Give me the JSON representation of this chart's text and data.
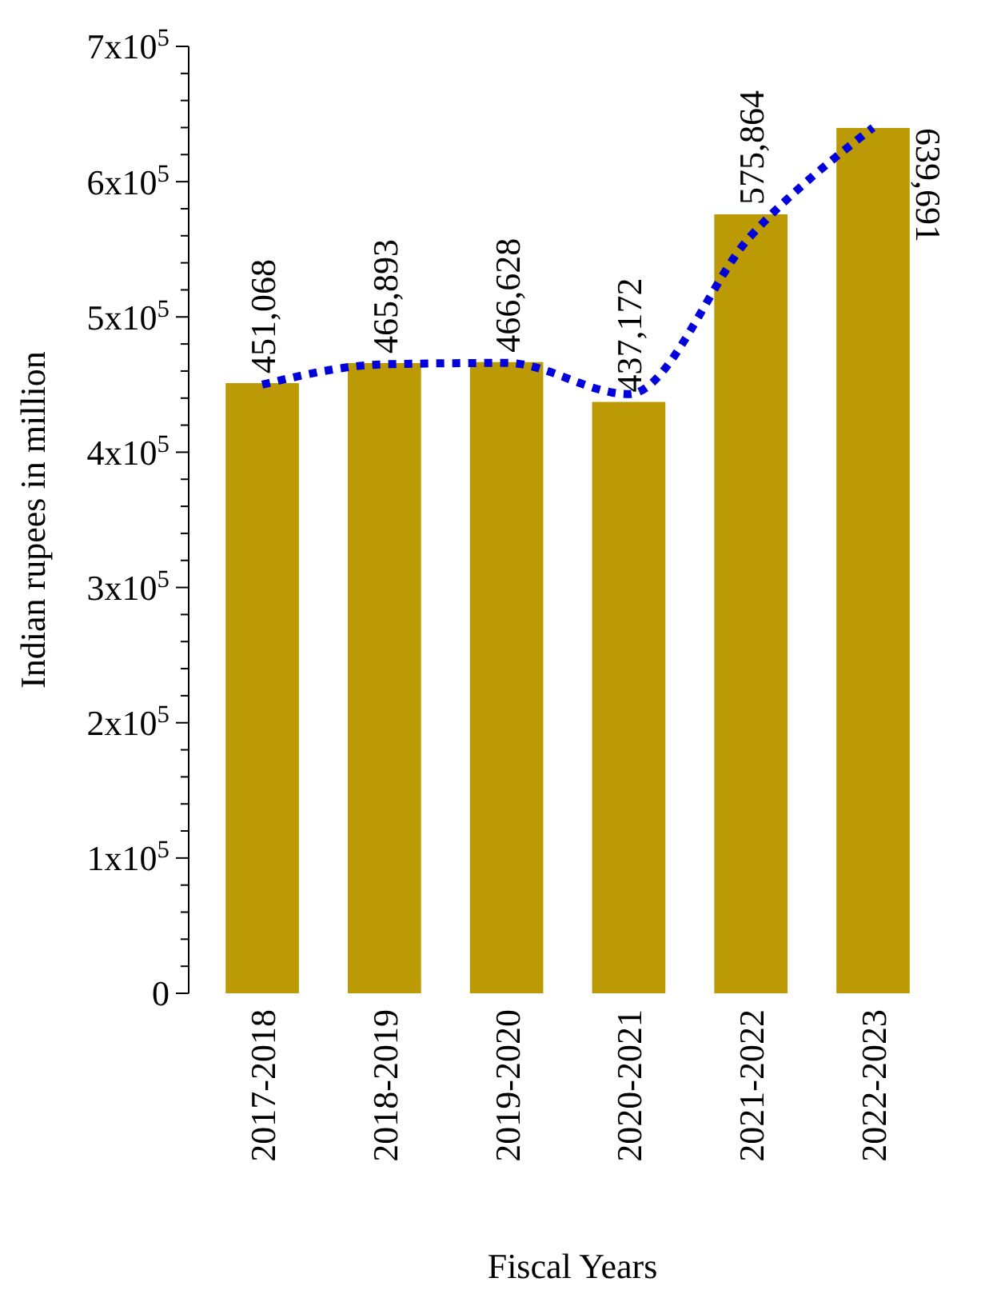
{
  "chart_data": {
    "type": "bar",
    "xlabel": "Fiscal Years",
    "ylabel": "Indian rupees in million",
    "categories": [
      "2017-2018",
      "2018-2019",
      "2019-2020",
      "2020-2021",
      "2021-2022",
      "2022-2023"
    ],
    "series": [
      {
        "color": "#bc9a06",
        "values": [
          451068,
          465893,
          466628,
          437172,
          575864,
          639691
        ],
        "value_labels": [
          "451,068",
          "465,893",
          "466,628",
          "437,172",
          "575,864",
          "639,691"
        ]
      },
      {
        "type": "line",
        "color": "#0000dd",
        "line_style": "dotted",
        "marker": "none",
        "values": [
          450000,
          465000,
          466000,
          443000,
          560000,
          640000
        ]
      }
    ],
    "grid": false,
    "ylim": [
      0,
      700000
    ],
    "yticks": [
      {
        "value": 0,
        "label": "0"
      },
      {
        "value": 20000,
        "label": null
      },
      {
        "value": 40000,
        "label": null
      },
      {
        "value": 60000,
        "label": null
      },
      {
        "value": 80000,
        "label": null
      },
      {
        "value": 100000,
        "label": "1x10$^{5}$"
      },
      {
        "value": 120000,
        "label": null
      },
      {
        "value": 140000,
        "label": null
      },
      {
        "value": 160000,
        "label": null
      },
      {
        "value": 180000,
        "label": null
      },
      {
        "value": 200000,
        "label": "2x10$^{5}$"
      },
      {
        "value": 220000,
        "label": null
      },
      {
        "value": 240000,
        "label": null
      },
      {
        "value": 260000,
        "label": null
      },
      {
        "value": 280000,
        "label": null
      },
      {
        "value": 300000,
        "label": "3x10$^{5}$"
      },
      {
        "value": 320000,
        "label": null
      },
      {
        "value": 340000,
        "label": null
      },
      {
        "value": 360000,
        "label": null
      },
      {
        "value": 380000,
        "label": null
      },
      {
        "value": 400000,
        "label": "4x10$^{5}$"
      },
      {
        "value": 420000,
        "label": null
      },
      {
        "value": 440000,
        "label": null
      },
      {
        "value": 460000,
        "label": null
      },
      {
        "value": 480000,
        "label": null
      },
      {
        "value": 500000,
        "label": "5x10$^{5}$"
      },
      {
        "value": 520000,
        "label": null
      },
      {
        "value": 540000,
        "label": null
      },
      {
        "value": 560000,
        "label": null
      },
      {
        "value": 580000,
        "label": null
      },
      {
        "value": 600000,
        "label": "6x10$^{5}$"
      },
      {
        "value": 620000,
        "label": null
      },
      {
        "value": 640000,
        "label": null
      },
      {
        "value": 660000,
        "label": null
      },
      {
        "value": 680000,
        "label": null
      },
      {
        "value": 700000,
        "label": "7x10$^{5}$"
      }
    ]
  }
}
